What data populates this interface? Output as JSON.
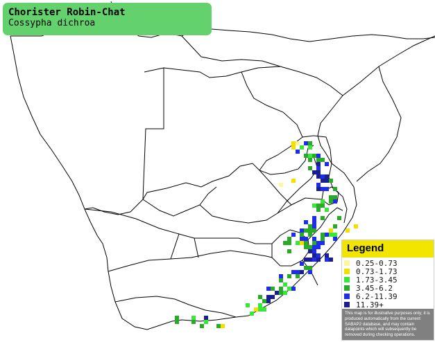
{
  "map": {
    "title": "Chorister Robin-Chat",
    "subtitle": "Cossypha dichroa"
  },
  "legend": {
    "title": "Legend",
    "items": [
      {
        "label": "0.25-0.73",
        "color": "#fff59a"
      },
      {
        "label": "0.73-1.73",
        "color": "#f4e000"
      },
      {
        "label": "1.73-3.45",
        "color": "#3ae63a"
      },
      {
        "label": "3.45-6.2",
        "color": "#2aa92a"
      },
      {
        "label": "6.2-11.39",
        "color": "#1f2ee6"
      },
      {
        "label": "11.39+",
        "color": "#1a1f8e"
      }
    ],
    "note": "This map is for illustrative purposes only; it is produced automatically from the current SABAP2 database, and may contain datapoints which will subsequently be removed during checking operations."
  },
  "colors": {
    "title_box": "#63d26c",
    "legend_header": "#f2e600",
    "note_background": "#808080",
    "border_lines": "#000000"
  }
}
